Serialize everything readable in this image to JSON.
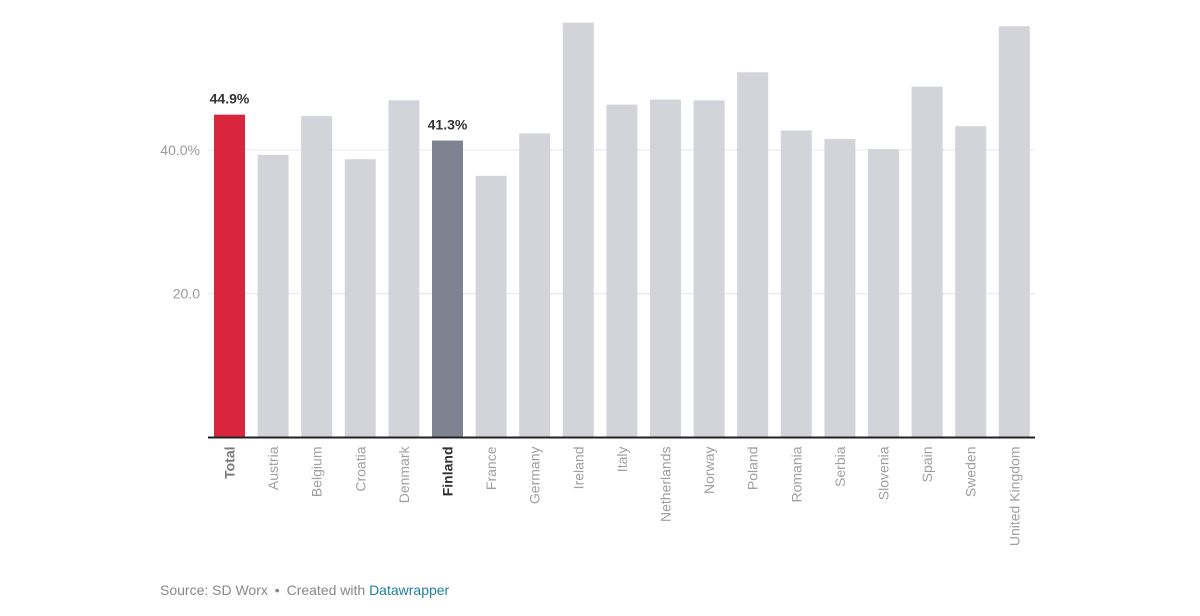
{
  "chart_data": {
    "type": "bar",
    "categories": [
      "Total",
      "Austria",
      "Belgium",
      "Croatia",
      "Denmark",
      "Finland",
      "France",
      "Germany",
      "Ireland",
      "Italy",
      "Netherlands",
      "Norway",
      "Poland",
      "Romania",
      "Serbia",
      "Slovenia",
      "Spain",
      "Sweden",
      "United Kingdom"
    ],
    "values": [
      44.9,
      39.3,
      44.7,
      38.7,
      46.9,
      41.3,
      36.4,
      42.3,
      57.7,
      46.3,
      47.0,
      46.9,
      50.8,
      42.7,
      41.5,
      40.1,
      48.8,
      43.3,
      57.2
    ],
    "ylim": [
      0,
      60
    ],
    "yticks": [
      {
        "value": 20,
        "label": "20.0"
      },
      {
        "value": 40,
        "label": "40.0%"
      }
    ],
    "data_labels": {
      "Total": "44.9%",
      "Finland": "41.3%"
    },
    "highlight_colors": {
      "Total": "#d7263d",
      "Finland": "#7f8391"
    },
    "default_color": "#d3d4da",
    "grid": true,
    "legend": "none"
  },
  "footer": {
    "source": "Source: SD Worx",
    "separator": "•",
    "created_with": "Created with",
    "link_text": "Datawrapper"
  }
}
